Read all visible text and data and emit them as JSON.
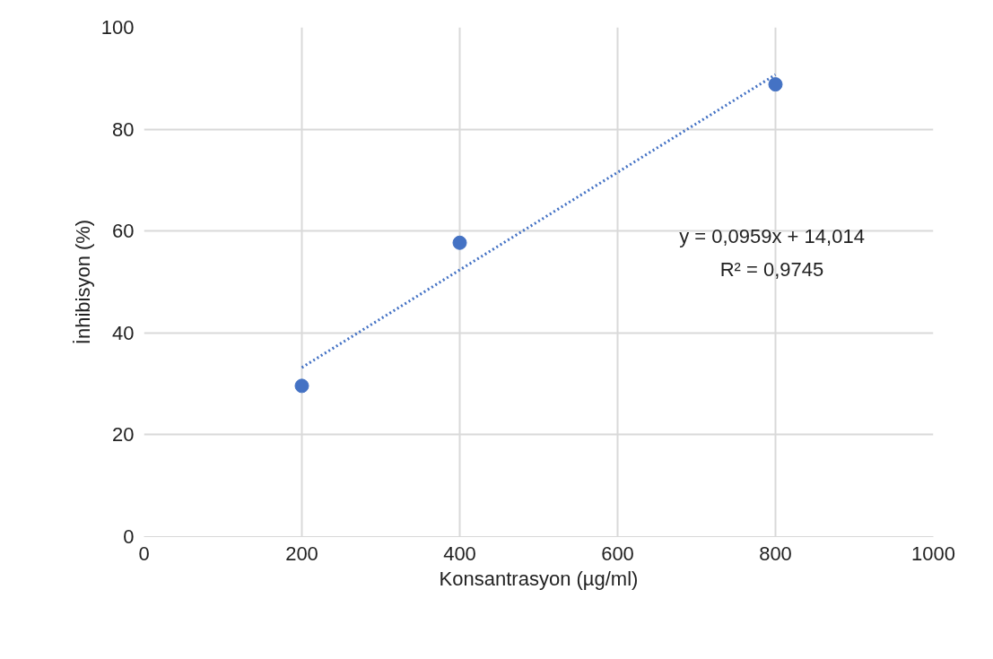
{
  "chart_data": {
    "type": "scatter",
    "xlabel": "Konsantrasyon (µg/ml)",
    "ylabel": "İnhibisyon (%)",
    "xlim": [
      0,
      1000
    ],
    "xticks": [
      0,
      200,
      400,
      600,
      800,
      1000
    ],
    "ylim": [
      0,
      100
    ],
    "yticks": [
      0,
      20,
      40,
      60,
      80,
      100
    ],
    "grid": true,
    "marker": "circle",
    "series": [
      {
        "color": "#4472c4",
        "x": [
          200,
          400,
          800
        ],
        "values": [
          29.6,
          57.7,
          88.8
        ]
      },
      {
        "type": "line",
        "color": "#4472c4",
        "line_style": "dotted",
        "marker": "none",
        "x": [
          200,
          800
        ],
        "values": [
          33.2,
          90.7
        ]
      }
    ],
    "annotations": [
      "y = 0,0959x + 14,014",
      "R² = 0,9745"
    ]
  }
}
